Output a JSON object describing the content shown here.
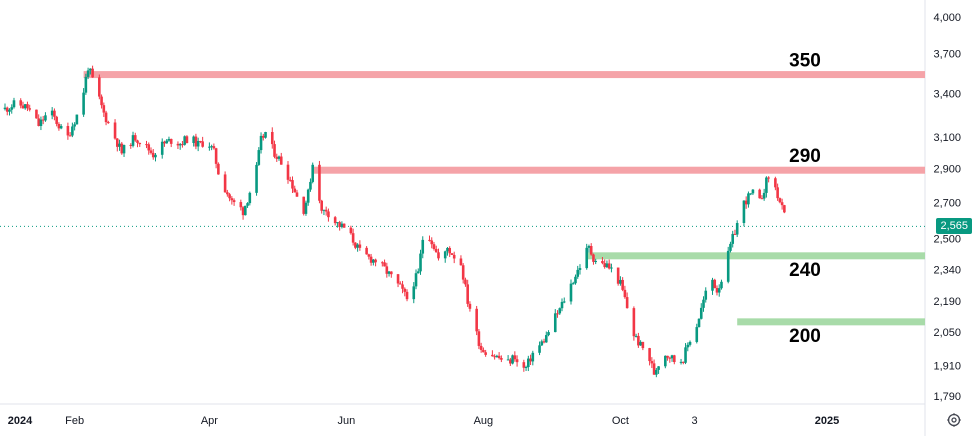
{
  "chart_data": {
    "type": "candlestick",
    "colors": {
      "up": "#089981",
      "down": "#f23645",
      "resistance": "#f5a3a8",
      "support": "#a8dba9",
      "badge": "#089981"
    },
    "y_scale": "log",
    "grid": false,
    "y_ticks": [
      "4,000",
      "3,700",
      "3,400",
      "3,100",
      "2,900",
      "2,700",
      "2,500",
      "2,340",
      "2,190",
      "2,050",
      "1,910",
      "1,790"
    ],
    "y_tick_values": [
      4000,
      3700,
      3400,
      3100,
      2900,
      2700,
      2500,
      2340,
      2190,
      2050,
      1910,
      1790
    ],
    "x_ticks": [
      {
        "label": "2024",
        "bold": true,
        "t": 0
      },
      {
        "label": "Feb",
        "bold": false,
        "t": 31
      },
      {
        "label": "Apr",
        "bold": false,
        "t": 91
      },
      {
        "label": "Jun",
        "bold": false,
        "t": 152
      },
      {
        "label": "Aug",
        "bold": false,
        "t": 213
      },
      {
        "label": "Oct",
        "bold": false,
        "t": 274
      },
      {
        "label": "3",
        "bold": false,
        "t": 307
      },
      {
        "label": "2025",
        "bold": true,
        "t": 366
      }
    ],
    "last_price": "2,565",
    "last_price_value": 2565,
    "levels": [
      {
        "label": "350",
        "value": 3540,
        "kind": "resistance",
        "t_start": 35
      },
      {
        "label": "290",
        "value": 2890,
        "kind": "resistance",
        "t_start": 137
      },
      {
        "label": "240",
        "value": 2410,
        "kind": "support",
        "t_start": 259
      },
      {
        "label": "200",
        "value": 2095,
        "kind": "support",
        "t_start": 326
      }
    ],
    "path": [
      [
        0,
        3290
      ],
      [
        5,
        3330
      ],
      [
        10,
        3300
      ],
      [
        15,
        3180
      ],
      [
        20,
        3280
      ],
      [
        25,
        3150
      ],
      [
        27,
        3060
      ],
      [
        30,
        3180
      ],
      [
        33,
        3280
      ],
      [
        35,
        3420
      ],
      [
        37,
        3600
      ],
      [
        40,
        3450
      ],
      [
        44,
        3260
      ],
      [
        48,
        3130
      ],
      [
        52,
        3000
      ],
      [
        55,
        3060
      ],
      [
        58,
        3100
      ],
      [
        62,
        3050
      ],
      [
        66,
        2990
      ],
      [
        70,
        3050
      ],
      [
        74,
        3080
      ],
      [
        78,
        3060
      ],
      [
        82,
        3100
      ],
      [
        86,
        3050
      ],
      [
        90,
        3080
      ],
      [
        93,
        3000
      ],
      [
        95,
        2880
      ],
      [
        98,
        2780
      ],
      [
        101,
        2700
      ],
      [
        104,
        2680
      ],
      [
        106,
        2650
      ],
      [
        108,
        2720
      ],
      [
        110,
        2800
      ],
      [
        112,
        2900
      ],
      [
        114,
        3080
      ],
      [
        116,
        3130
      ],
      [
        118,
        3050
      ],
      [
        120,
        3000
      ],
      [
        124,
        2920
      ],
      [
        128,
        2800
      ],
      [
        131,
        2700
      ],
      [
        133,
        2660
      ],
      [
        135,
        2750
      ],
      [
        137,
        2930
      ],
      [
        139,
        2820
      ],
      [
        141,
        2640
      ],
      [
        143,
        2660
      ],
      [
        146,
        2600
      ],
      [
        149,
        2570
      ],
      [
        152,
        2550
      ],
      [
        155,
        2490
      ],
      [
        158,
        2430
      ],
      [
        162,
        2400
      ],
      [
        166,
        2380
      ],
      [
        170,
        2330
      ],
      [
        173,
        2290
      ],
      [
        176,
        2250
      ],
      [
        179,
        2200
      ],
      [
        181,
        2260
      ],
      [
        184,
        2320
      ],
      [
        186,
        2500
      ],
      [
        188,
        2540
      ],
      [
        191,
        2460
      ],
      [
        194,
        2360
      ],
      [
        197,
        2450
      ],
      [
        200,
        2410
      ],
      [
        203,
        2370
      ],
      [
        206,
        2190
      ],
      [
        208,
        2130
      ],
      [
        210,
        2040
      ],
      [
        212,
        1980
      ],
      [
        216,
        1960
      ],
      [
        220,
        1940
      ],
      [
        224,
        1920
      ],
      [
        227,
        1950
      ],
      [
        229,
        1890
      ],
      [
        232,
        1900
      ],
      [
        235,
        1960
      ],
      [
        238,
        1990
      ],
      [
        241,
        2030
      ],
      [
        244,
        2100
      ],
      [
        247,
        2150
      ],
      [
        250,
        2220
      ],
      [
        253,
        2290
      ],
      [
        256,
        2360
      ],
      [
        258,
        2420
      ],
      [
        260,
        2450
      ],
      [
        262,
        2400
      ],
      [
        265,
        2370
      ],
      [
        268,
        2360
      ],
      [
        271,
        2330
      ],
      [
        274,
        2270
      ],
      [
        276,
        2200
      ],
      [
        278,
        2120
      ],
      [
        280,
        2040
      ],
      [
        283,
        1990
      ],
      [
        286,
        1960
      ],
      [
        289,
        1880
      ],
      [
        291,
        1920
      ],
      [
        293,
        1960
      ],
      [
        296,
        1950
      ],
      [
        299,
        1920
      ],
      [
        302,
        1940
      ],
      [
        305,
        2020
      ],
      [
        308,
        2080
      ],
      [
        311,
        2190
      ],
      [
        313,
        2260
      ],
      [
        315,
        2290
      ],
      [
        317,
        2240
      ],
      [
        320,
        2320
      ],
      [
        323,
        2460
      ],
      [
        326,
        2580
      ],
      [
        328,
        2680
      ],
      [
        331,
        2730
      ],
      [
        334,
        2760
      ],
      [
        336,
        2700
      ],
      [
        339,
        2820
      ],
      [
        341,
        2880
      ],
      [
        343,
        2780
      ],
      [
        345,
        2700
      ],
      [
        347,
        2620
      ],
      [
        348,
        2565
      ]
    ]
  }
}
